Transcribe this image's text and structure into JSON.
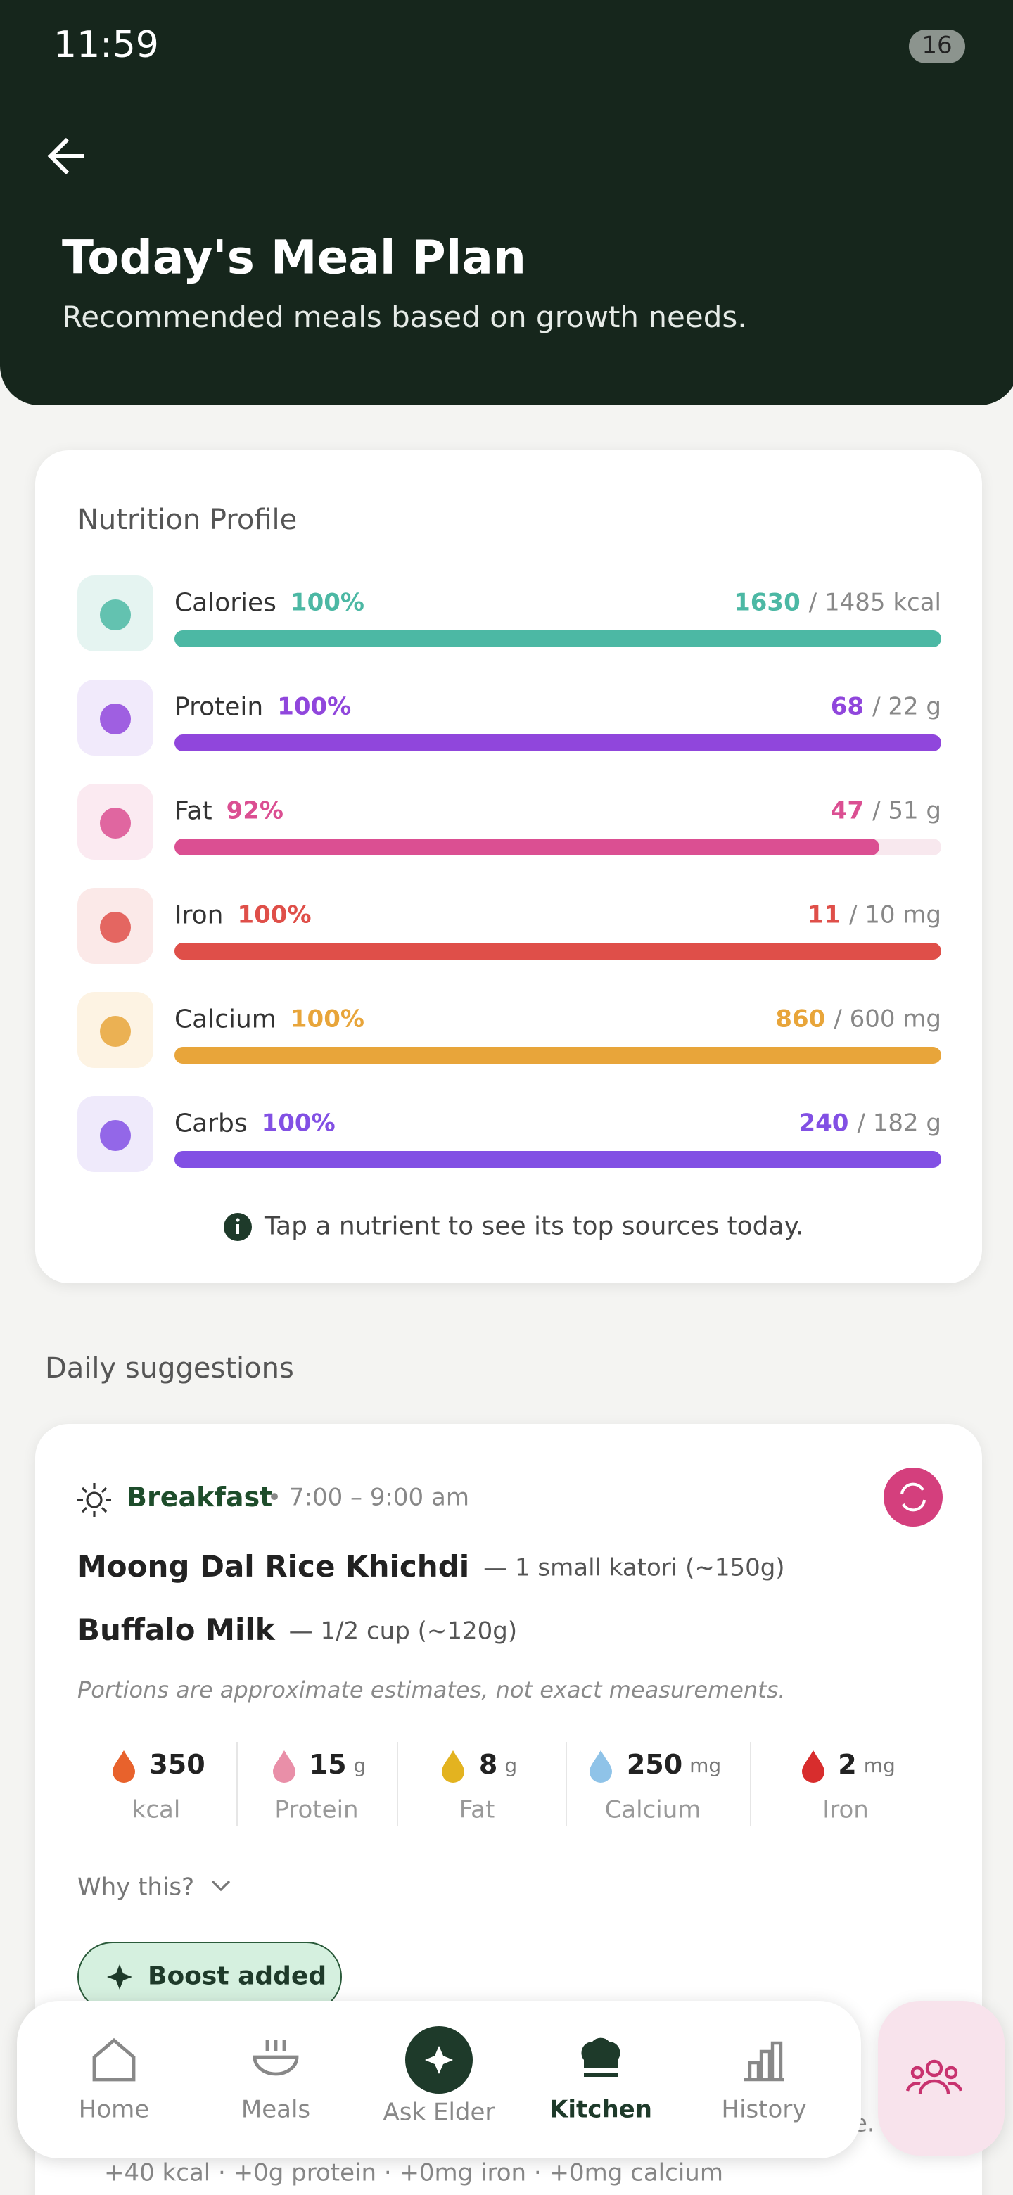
{
  "status_bar": {
    "time": "11:59",
    "battery": "16"
  },
  "header": {
    "title": "Today's Meal Plan",
    "subtitle": "Recommended meals based on growth needs."
  },
  "nutrition_profile": {
    "title": "Nutrition Profile",
    "nutrients": [
      {
        "name": "Calories",
        "percent": {
          "value": 100,
          "label": "100%"
        },
        "consumed": "1630",
        "target": "/ 1485 kcal",
        "color": "#4cb8a4",
        "icon_bg": "#e5f4f1"
      },
      {
        "name": "Protein",
        "percent": {
          "value": 100,
          "label": "100%"
        },
        "consumed": "68",
        "target": "/ 22 g",
        "color": "#9046dc",
        "icon_bg": "#f1eafb"
      },
      {
        "name": "Fat",
        "percent": {
          "value": 92,
          "label": "92%"
        },
        "consumed": "47",
        "target": "/ 51 g",
        "color": "#db4f92",
        "icon_bg": "#fbeaf1"
      },
      {
        "name": "Iron",
        "percent": {
          "value": 100,
          "label": "100%"
        },
        "consumed": "11",
        "target": "/ 10 mg",
        "color": "#df4f49",
        "icon_bg": "#fbe9e8"
      },
      {
        "name": "Calcium",
        "percent": {
          "value": 100,
          "label": "100%"
        },
        "consumed": "860",
        "target": "/ 600 mg",
        "color": "#e8a53a",
        "icon_bg": "#fdf3e3"
      },
      {
        "name": "Carbs",
        "percent": {
          "value": 100,
          "label": "100%"
        },
        "consumed": "240",
        "target": "/ 182 g",
        "color": "#8250e4",
        "icon_bg": "#efeafb"
      }
    ],
    "hint": "Tap a nutrient to see its top sources today."
  },
  "daily_suggestions": {
    "title": "Daily suggestions",
    "meal": {
      "name": "Breakfast",
      "time": "• 7:00 – 9:00 am",
      "items": [
        {
          "name": "Moong Dal Rice Khichdi",
          "portion": "— 1 small katori (~150g)"
        },
        {
          "name": "Buffalo Milk",
          "portion": "— 1/2 cup (~120g)"
        }
      ],
      "note": "Portions are approximate estimates, not exact measurements.",
      "stats": [
        {
          "value": "350",
          "label": "kcal",
          "color": "#e8622c"
        },
        {
          "value": "15",
          "unit": "g",
          "label": "Protein",
          "color": "#e98fa8"
        },
        {
          "value": "8",
          "unit": "g",
          "label": "Fat",
          "color": "#e3b320"
        },
        {
          "value": "250",
          "unit": "mg",
          "label": "Calcium",
          "color": "#8fc3e8"
        },
        {
          "value": "2",
          "unit": "mg",
          "label": "Iron",
          "color": "#d82d2d"
        }
      ],
      "why": "Why this?",
      "boost": "Boost added",
      "partial_text": "e.",
      "boost_summary": "+40 kcal · +0g protein · +0mg iron · +0mg calcium"
    }
  },
  "nav": {
    "items": [
      "Home",
      "Meals",
      "Ask Elder",
      "Kitchen",
      "History"
    ]
  }
}
